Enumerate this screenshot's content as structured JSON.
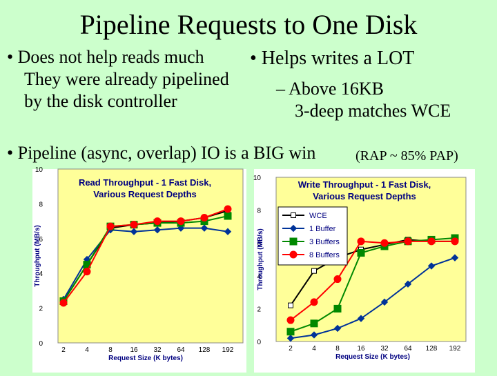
{
  "slide": {
    "title": "Pipeline Requests to One Disk",
    "bullets": [
      {
        "text": "• Does not help reads much"
      },
      {
        "text": "They were already pipelined"
      },
      {
        "text": "by the disk controller"
      },
      {
        "text": "• Helps writes a LOT"
      },
      {
        "text": "– Above 16KB"
      },
      {
        "text": "3-deep matches WCE"
      },
      {
        "text": "• Pipeline (async, overlap) IO is a BIG win"
      },
      {
        "text": "(RAP ~ 85% PAP)"
      }
    ]
  },
  "chart_data": [
    {
      "type": "line",
      "title": "Read Throughput - 1 Fast Disk, Various Request Depths",
      "title_lines": [
        "Read Throughput - 1 Fast Disk,",
        "Various Request Depths"
      ],
      "xlabel": "Request Size (K bytes)",
      "ylabel": "Throughput (MB/s)",
      "categories": [
        "2",
        "4",
        "8",
        "16",
        "32",
        "64",
        "128",
        "192"
      ],
      "ylim": [
        0,
        10
      ],
      "yticks": [
        "0",
        "2",
        "4",
        "6",
        "8",
        "10"
      ],
      "grid": false,
      "legend": "none",
      "series": [
        {
          "key": "wce",
          "values": [
            2.4,
            4.5,
            6.6,
            6.8,
            6.9,
            7.0,
            7.2,
            7.6
          ],
          "color": "#000000",
          "marker": "open-square"
        },
        {
          "key": "one",
          "values": [
            2.5,
            4.8,
            6.5,
            6.4,
            6.5,
            6.6,
            6.6,
            6.4
          ],
          "color": "#003399",
          "marker": "diamond"
        },
        {
          "key": "three",
          "values": [
            2.4,
            4.5,
            6.7,
            6.8,
            6.9,
            6.9,
            7.0,
            7.3
          ],
          "color": "#008800",
          "marker": "square"
        },
        {
          "key": "eight",
          "values": [
            2.3,
            4.1,
            6.7,
            6.8,
            7.0,
            7.0,
            7.2,
            7.7
          ],
          "color": "#ff0000",
          "marker": "circle"
        }
      ]
    },
    {
      "type": "line",
      "title": "Write Throughput - 1 Fast Disk, Various Request Depths",
      "title_lines": [
        "Write Throughput - 1 Fast Disk,",
        "Various Request Depths"
      ],
      "xlabel": "Request Size (K bytes)",
      "ylabel": "Throughput (MB/s)",
      "categories": [
        "2",
        "4",
        "8",
        "16",
        "32",
        "64",
        "128",
        "192"
      ],
      "ylim": [
        0,
        10
      ],
      "yticks": [
        "0",
        "2",
        "4",
        "6",
        "8",
        "10"
      ],
      "grid": false,
      "legend": "top-left",
      "series": [
        {
          "key": "wce",
          "name": "WCE",
          "values": [
            2.2,
            4.3,
            5.1,
            5.6,
            5.9,
            6.2,
            6.1,
            6.1
          ],
          "color": "#000000",
          "marker": "open-square"
        },
        {
          "key": "one",
          "name": "1 Buffer",
          "values": [
            0.2,
            0.4,
            0.8,
            1.4,
            2.4,
            3.5,
            4.6,
            5.1
          ],
          "color": "#003399",
          "marker": "diamond"
        },
        {
          "key": "three",
          "name": "3 Buffers",
          "values": [
            0.6,
            1.1,
            2.0,
            5.4,
            5.8,
            6.1,
            6.2,
            6.3
          ],
          "color": "#008800",
          "marker": "square"
        },
        {
          "key": "eight",
          "name": "8 Buffers",
          "values": [
            1.3,
            2.4,
            3.8,
            6.1,
            6.0,
            6.1,
            6.1,
            6.1
          ],
          "color": "#ff0000",
          "marker": "circle"
        }
      ]
    }
  ]
}
